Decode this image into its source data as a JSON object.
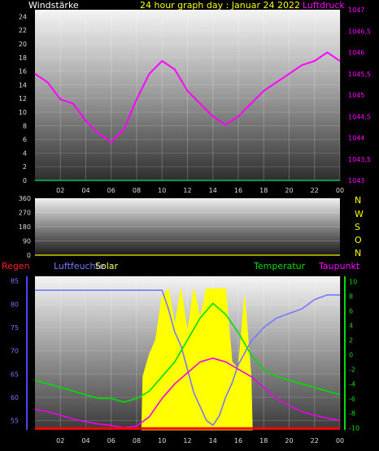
{
  "header": {
    "left_label": "Windstärke",
    "title": "24 hour graph day : Januar 24 2022",
    "right_label": "Luftdruck"
  },
  "mid": {
    "direction_labels": [
      "N",
      "W",
      "S",
      "O",
      "N"
    ]
  },
  "bottom": {
    "labels": {
      "rain": "Regen",
      "humidity": "Luftfeuchte",
      "solar": "Solar",
      "temperature": "Temperatur",
      "dewpoint": "Taupunkt"
    }
  },
  "colors": {
    "pressure": "#ff00ff",
    "wind": "#00c060",
    "direction": "#cccc00",
    "temperature": "#00dd00",
    "dewpoint": "#ee00ee",
    "humidity": "#7777ff",
    "solar": "#ffff00",
    "rain": "#ff0000",
    "header_left": "#ffffff",
    "header_title": "#ffff00",
    "header_right": "#ff00ff"
  },
  "chart_data": [
    {
      "type": "line",
      "id": "wind_pressure",
      "x_ticks": [
        "02",
        "04",
        "06",
        "08",
        "10",
        "12",
        "14",
        "16",
        "18",
        "20",
        "22",
        "00"
      ],
      "y_left_ticks": [
        "0",
        "2",
        "4",
        "6",
        "8",
        "10",
        "12",
        "14",
        "16",
        "18",
        "20",
        "22",
        "24"
      ],
      "y_left_range": [
        0,
        25
      ],
      "y_right_ticks": [
        "1043",
        "1043,5",
        "1044",
        "1044,5",
        "1045",
        "1045,5",
        "1046",
        "1046,5",
        "1047"
      ],
      "y_right_range": [
        1043,
        1047
      ],
      "series": [
        {
          "name": "Luftdruck",
          "axis": "right",
          "x": [
            0,
            1,
            2,
            3,
            4,
            5,
            6,
            7,
            8,
            9,
            10,
            11,
            12,
            13,
            14,
            15,
            16,
            17,
            18,
            19,
            20,
            21,
            22,
            23,
            24
          ],
          "values": [
            1045.5,
            1045.3,
            1044.9,
            1044.8,
            1044.4,
            1044.1,
            1043.9,
            1044.2,
            1044.9,
            1045.5,
            1045.8,
            1045.6,
            1045.1,
            1044.8,
            1044.5,
            1044.3,
            1044.5,
            1044.8,
            1045.1,
            1045.3,
            1045.5,
            1045.7,
            1045.8,
            1046.0,
            1045.8
          ]
        },
        {
          "name": "Windstärke",
          "axis": "left",
          "x": [
            0,
            24
          ],
          "values": [
            0,
            0
          ]
        }
      ]
    },
    {
      "type": "scatter",
      "id": "wind_direction",
      "x_ticks": [
        "02",
        "04",
        "06",
        "08",
        "10",
        "12",
        "14",
        "16",
        "18",
        "20",
        "22",
        "00"
      ],
      "y_ticks": [
        "0",
        "90",
        "180",
        "270",
        "360"
      ],
      "y_range": [
        0,
        360
      ],
      "series": [
        {
          "name": "direction",
          "x": [
            0,
            24
          ],
          "values": [
            0,
            0
          ]
        }
      ]
    },
    {
      "type": "line",
      "id": "temp_humidity",
      "x_ticks": [
        "02",
        "04",
        "06",
        "08",
        "10",
        "12",
        "14",
        "16",
        "18",
        "20",
        "22",
        "00"
      ],
      "y_left_ticks": [
        "55",
        "60",
        "65",
        "70",
        "75",
        "80",
        "85"
      ],
      "y_left_range": [
        53,
        86
      ],
      "y_right_ticks": [
        "-10",
        "-8",
        "-6",
        "-4",
        "-2",
        "0",
        "2",
        "4",
        "6",
        "8",
        "10"
      ],
      "y_right_range": [
        -10.3,
        10.7
      ],
      "series": [
        {
          "name": "Luftfeuchte",
          "axis": "left",
          "x": [
            0,
            2,
            4,
            6,
            8,
            9,
            10,
            10.5,
            11,
            11.5,
            12,
            12.5,
            13,
            13.5,
            14,
            14.5,
            15,
            15.5,
            16,
            17,
            18,
            19,
            20,
            21,
            22,
            23,
            24
          ],
          "values": [
            83,
            83,
            83,
            83,
            83,
            83,
            83,
            79,
            74,
            71,
            66,
            61,
            58,
            55,
            54,
            56,
            60,
            63,
            67,
            72,
            75,
            77,
            78,
            79,
            81,
            82,
            82
          ]
        },
        {
          "name": "Temperatur",
          "axis": "right",
          "x": [
            0,
            1,
            2,
            3,
            4,
            5,
            6,
            7,
            8,
            9,
            10,
            11,
            12,
            13,
            14,
            15,
            16,
            17,
            18,
            19,
            20,
            21,
            22,
            23,
            24
          ],
          "values": [
            -3.5,
            -4,
            -4.5,
            -5,
            -5.5,
            -6,
            -6,
            -6.5,
            -6,
            -5,
            -3,
            -1,
            2,
            5,
            7,
            5.5,
            3,
            0,
            -2,
            -3,
            -3.5,
            -4,
            -4.5,
            -5,
            -5.5
          ]
        },
        {
          "name": "Taupunkt",
          "axis": "right",
          "x": [
            0,
            1,
            2,
            3,
            4,
            5,
            6,
            7,
            8,
            9,
            10,
            11,
            12,
            13,
            14,
            15,
            16,
            17,
            18,
            19,
            20,
            21,
            22,
            23,
            24
          ],
          "values": [
            -7.5,
            -7.8,
            -8.3,
            -8.8,
            -9.2,
            -9.5,
            -9.7,
            -10,
            -9.8,
            -8.5,
            -6,
            -4,
            -2.5,
            -1,
            -0.5,
            -1,
            -2,
            -3,
            -4.5,
            -6,
            -7,
            -7.8,
            -8.3,
            -8.7,
            -9
          ]
        },
        {
          "name": "Solar",
          "axis": "right",
          "x": [
            8.4,
            8.5,
            9,
            9.5,
            10,
            10.5,
            11,
            11.5,
            12,
            12.5,
            13,
            13.5,
            14,
            14.5,
            15,
            15.5,
            16,
            16.5,
            17,
            17.1
          ],
          "values": [
            -10.3,
            -3,
            0,
            2,
            8,
            9,
            4,
            9,
            3,
            9,
            5,
            9,
            9,
            9,
            9,
            -1,
            -2,
            8,
            -3,
            -10.3
          ]
        },
        {
          "name": "Regen",
          "axis": "left",
          "x": [
            0,
            24
          ],
          "values": [
            53.3,
            53.3
          ]
        }
      ]
    }
  ]
}
